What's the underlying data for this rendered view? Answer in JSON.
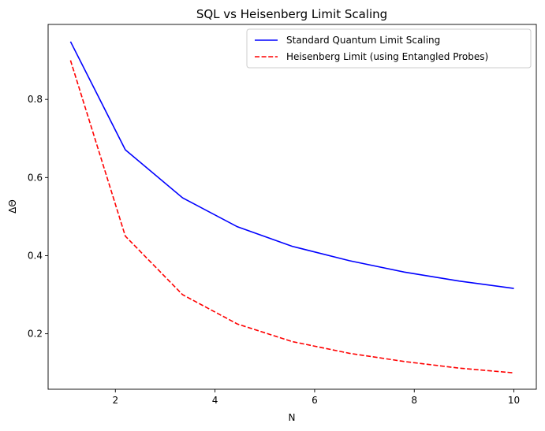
{
  "chart_data": {
    "type": "line",
    "title": "SQL vs Heisenberg Limit Scaling",
    "xlabel": "N",
    "ylabel": "ΔΘ",
    "xlim": [
      0.65,
      10.45
    ],
    "ylim": [
      0.058,
      0.992
    ],
    "xticks": [
      2,
      4,
      6,
      8,
      10
    ],
    "yticks": [
      0.2,
      0.4,
      0.6,
      0.8
    ],
    "xtick_labels": [
      "2",
      "4",
      "6",
      "8",
      "10"
    ],
    "ytick_labels": [
      "0.2",
      "0.4",
      "0.6",
      "0.8"
    ],
    "x": [
      1.1,
      2.2,
      3.35,
      4.45,
      5.55,
      6.7,
      7.8,
      8.9,
      10.0
    ],
    "series": [
      {
        "name": "Standard Quantum Limit Scaling",
        "color": "#0000ff",
        "dash": "solid",
        "values": [
          0.948,
          0.671,
          0.548,
          0.474,
          0.424,
          0.387,
          0.358,
          0.335,
          0.316
        ]
      },
      {
        "name": "Heisenberg Limit (using Entangled Probes)",
        "color": "#ff0000",
        "dash": "dashed",
        "values": [
          0.9,
          0.45,
          0.3,
          0.225,
          0.18,
          0.15,
          0.129,
          0.112,
          0.1
        ]
      }
    ],
    "legend_position": "top-right",
    "grid": false
  }
}
